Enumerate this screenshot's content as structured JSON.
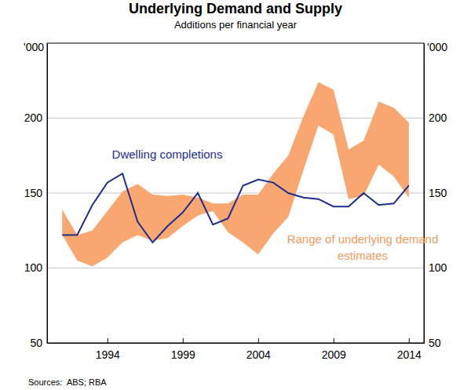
{
  "chart_data": {
    "type": "line",
    "title": "Underlying Demand and Supply",
    "subtitle": "Additions per financial year",
    "ylabel": "'000",
    "y2label": "'000",
    "source": "Sources:  ABS; RBA",
    "x": [
      1991,
      1992,
      1993,
      1994,
      1995,
      1996,
      1997,
      1998,
      1999,
      2000,
      2001,
      2002,
      2003,
      2004,
      2005,
      2006,
      2007,
      2008,
      2009,
      2010,
      2011,
      2012,
      2013,
      2014
    ],
    "xlim": [
      1990,
      2015
    ],
    "xticks": [
      1994,
      1999,
      2004,
      2009,
      2014
    ],
    "ylim": [
      50,
      250
    ],
    "yticks": [
      50,
      100,
      150,
      200
    ],
    "y2lim": [
      50,
      250
    ],
    "y2ticks": [
      50,
      100,
      150,
      200
    ],
    "grid": true,
    "series": [
      {
        "name": "Range of underlying demand estimates",
        "type": "area",
        "color": "#f8a771",
        "low": [
          122,
          105,
          101,
          107,
          117,
          122,
          118,
          120,
          128,
          135,
          138,
          124,
          117,
          109,
          123,
          134,
          165,
          195,
          189,
          146,
          148,
          169,
          161,
          147
        ],
        "high": [
          139,
          122,
          125,
          138,
          151,
          156,
          149,
          148,
          149,
          147,
          143,
          143,
          149,
          149,
          163,
          175,
          201,
          224,
          219,
          179,
          185,
          211,
          207,
          197
        ]
      },
      {
        "name": "Dwelling completions",
        "type": "line",
        "color": "#1d2d8c",
        "values": [
          122,
          122,
          142,
          157,
          163,
          131,
          117,
          128,
          137,
          150,
          129,
          133,
          155,
          159,
          157,
          150,
          147,
          146,
          141,
          141,
          150,
          142,
          143,
          155
        ]
      }
    ]
  }
}
